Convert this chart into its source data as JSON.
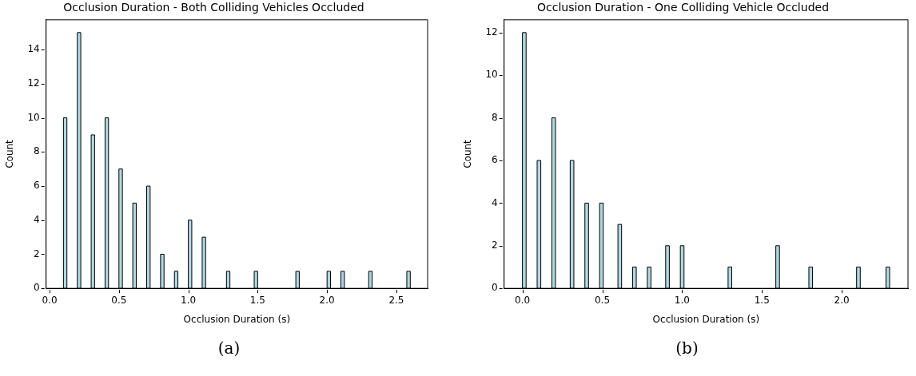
{
  "chart_data": [
    {
      "type": "histogram",
      "title": "Occlusion Duration - Both Colliding Vehicles Occluded",
      "xlabel": "Occlusion Duration (s)",
      "ylabel": "Count",
      "color": "#add8e6",
      "bins": [
        0.1,
        0.125,
        0.15,
        0.175,
        0.2,
        0.225,
        0.25,
        0.275,
        0.3,
        0.325,
        0.35,
        0.375,
        0.4,
        0.425,
        0.45,
        0.475,
        0.5,
        0.525,
        0.55,
        0.575,
        0.6,
        0.625,
        0.65,
        0.675,
        0.7,
        0.725,
        0.75,
        0.775,
        0.8,
        0.825,
        0.85,
        0.875,
        0.9,
        0.925,
        0.95,
        0.975,
        1.0,
        1.025,
        1.05,
        1.075,
        1.1,
        1.125,
        1.15,
        1.175,
        1.2,
        1.225,
        1.25,
        1.275,
        1.3,
        1.325,
        1.35,
        1.375,
        1.4,
        1.425,
        1.45,
        1.475,
        1.5,
        1.525,
        1.55,
        1.575,
        1.6,
        1.625,
        1.65,
        1.675,
        1.7,
        1.725,
        1.75,
        1.775,
        1.8,
        1.825,
        1.85,
        1.875,
        1.9,
        1.925,
        1.95,
        1.975,
        2.0,
        2.025,
        2.05,
        2.075,
        2.1,
        2.125,
        2.15,
        2.175,
        2.2,
        2.225,
        2.25,
        2.275,
        2.3,
        2.325,
        2.35,
        2.375,
        2.4,
        2.425,
        2.45,
        2.475,
        2.5,
        2.525,
        2.55,
        2.575,
        2.6
      ],
      "values": [
        10,
        0,
        0,
        0,
        15,
        0,
        0,
        0,
        9,
        0,
        0,
        0,
        10,
        0,
        0,
        0,
        7,
        0,
        0,
        0,
        5,
        0,
        0,
        0,
        6,
        0,
        0,
        0,
        2,
        0,
        0,
        0,
        1,
        0,
        0,
        0,
        4,
        0,
        0,
        0,
        3,
        0,
        0,
        0,
        0,
        0,
        0,
        1,
        0,
        0,
        0,
        0,
        0,
        0,
        0,
        1,
        0,
        0,
        0,
        0,
        0,
        0,
        0,
        0,
        0,
        0,
        0,
        1,
        0,
        0,
        0,
        0,
        0,
        0,
        0,
        0,
        1,
        0,
        0,
        0,
        1,
        0,
        0,
        0,
        0,
        0,
        0,
        0,
        1,
        0,
        0,
        0,
        0,
        0,
        0,
        0,
        0,
        0,
        0,
        1
      ],
      "xlim": [
        -0.025,
        2.725
      ],
      "ylim": [
        0,
        15.75
      ],
      "xticks": [
        {
          "value": 0,
          "label": "0.0"
        },
        0.5,
        {
          "value": 1,
          "label": "1.0"
        },
        1.5,
        {
          "value": 2,
          "label": "2.0"
        },
        2.5
      ],
      "yticks": [
        0,
        2,
        4,
        6,
        8,
        10,
        12,
        14
      ],
      "grid": false,
      "legend": false,
      "annotations": [
        "(a)"
      ]
    },
    {
      "type": "histogram",
      "title": "Occlusion Duration - One Colliding Vehicle Occluded",
      "xlabel": "Occlusion Duration (s)",
      "ylabel": "Count",
      "color": "#add8e6",
      "bins": [
        0,
        0.023,
        0.046,
        0.069,
        0.092,
        0.115,
        0.138,
        0.161,
        0.184,
        0.207,
        0.23,
        0.253,
        0.276,
        0.299,
        0.322,
        0.345,
        0.368,
        0.391,
        0.414,
        0.437,
        0.46,
        0.483,
        0.506,
        0.529,
        0.552,
        0.575,
        0.598,
        0.621,
        0.644,
        0.667,
        0.69,
        0.713,
        0.736,
        0.759,
        0.782,
        0.805,
        0.828,
        0.851,
        0.874,
        0.897,
        0.92,
        0.943,
        0.966,
        0.989,
        1.012,
        1.035,
        1.058,
        1.081,
        1.104,
        1.127,
        1.15,
        1.173,
        1.196,
        1.219,
        1.242,
        1.265,
        1.288,
        1.311,
        1.334,
        1.357,
        1.38,
        1.403,
        1.426,
        1.449,
        1.472,
        1.495,
        1.518,
        1.541,
        1.564,
        1.587,
        1.61,
        1.633,
        1.656,
        1.679,
        1.702,
        1.725,
        1.748,
        1.771,
        1.794,
        1.817,
        1.84,
        1.863,
        1.886,
        1.909,
        1.932,
        1.955,
        1.978,
        2.001,
        2.024,
        2.047,
        2.07,
        2.093,
        2.116,
        2.139,
        2.162,
        2.185,
        2.208,
        2.231,
        2.254,
        2.277,
        2.3
      ],
      "values": [
        12,
        0,
        0,
        0,
        6,
        0,
        0,
        0,
        8,
        0,
        0,
        0,
        0,
        6,
        0,
        0,
        0,
        4,
        0,
        0,
        0,
        4,
        0,
        0,
        0,
        0,
        3,
        0,
        0,
        0,
        1,
        0,
        0,
        0,
        1,
        0,
        0,
        0,
        0,
        2,
        0,
        0,
        0,
        2,
        0,
        0,
        0,
        0,
        0,
        0,
        0,
        0,
        0,
        0,
        0,
        0,
        1,
        0,
        0,
        0,
        0,
        0,
        0,
        0,
        0,
        0,
        0,
        0,
        0,
        2,
        0,
        0,
        0,
        0,
        0,
        0,
        0,
        0,
        1,
        0,
        0,
        0,
        0,
        0,
        0,
        0,
        0,
        0,
        0,
        0,
        0,
        1,
        0,
        0,
        0,
        0,
        0,
        0,
        0,
        1
      ],
      "xlim": [
        -0.115,
        2.415
      ],
      "ylim": [
        0,
        12.6
      ],
      "xticks": [
        {
          "value": 0,
          "label": "0.0"
        },
        0.5,
        {
          "value": 1,
          "label": "1.0"
        },
        1.5,
        {
          "value": 2,
          "label": "2.0"
        }
      ],
      "yticks": [
        0,
        2,
        4,
        6,
        8,
        10,
        12
      ],
      "grid": false,
      "legend": false,
      "annotations": [
        "(b)"
      ]
    }
  ]
}
